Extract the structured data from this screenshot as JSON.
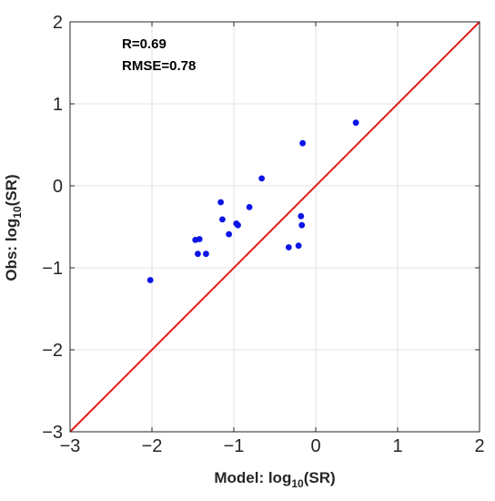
{
  "chart_data": {
    "type": "scatter",
    "title": "",
    "xlabel": {
      "prefix": "Model: log",
      "sub": "10",
      "suffix": "(SR)"
    },
    "ylabel": {
      "prefix": "Obs: log",
      "sub": "10",
      "suffix": "(SR)"
    },
    "xlim": [
      -3,
      2
    ],
    "ylim": [
      -3,
      2
    ],
    "xticks": [
      -3,
      -2,
      -1,
      0,
      1,
      2
    ],
    "yticks": [
      -3,
      -2,
      -1,
      0,
      1,
      2
    ],
    "xtick_labels": [
      "−3",
      "−2",
      "−1",
      "0",
      "1",
      "2"
    ],
    "ytick_labels": [
      "−3",
      "−2",
      "−1",
      "0",
      "1",
      "2"
    ],
    "grid": true,
    "annotations": [
      "R=0.69",
      "RMSE=0.78"
    ],
    "reference_line": {
      "type": "1:1",
      "x": [
        -3,
        2
      ],
      "y": [
        -3,
        2
      ],
      "color": "#e41a1c"
    },
    "point_color": "#0a14e6",
    "points": [
      {
        "x": -2.02,
        "y": -1.15
      },
      {
        "x": -1.47,
        "y": -0.66
      },
      {
        "x": -1.42,
        "y": -0.65
      },
      {
        "x": -1.44,
        "y": -0.83
      },
      {
        "x": -1.34,
        "y": -0.83
      },
      {
        "x": -1.16,
        "y": -0.2
      },
      {
        "x": -1.14,
        "y": -0.41
      },
      {
        "x": -1.06,
        "y": -0.59
      },
      {
        "x": -0.97,
        "y": -0.46
      },
      {
        "x": -0.95,
        "y": -0.48
      },
      {
        "x": -0.81,
        "y": -0.26
      },
      {
        "x": -0.66,
        "y": 0.09
      },
      {
        "x": -0.33,
        "y": -0.75
      },
      {
        "x": -0.21,
        "y": -0.73
      },
      {
        "x": -0.18,
        "y": -0.37
      },
      {
        "x": -0.17,
        "y": -0.48
      },
      {
        "x": -0.16,
        "y": 0.52
      },
      {
        "x": 0.49,
        "y": 0.77
      }
    ]
  }
}
